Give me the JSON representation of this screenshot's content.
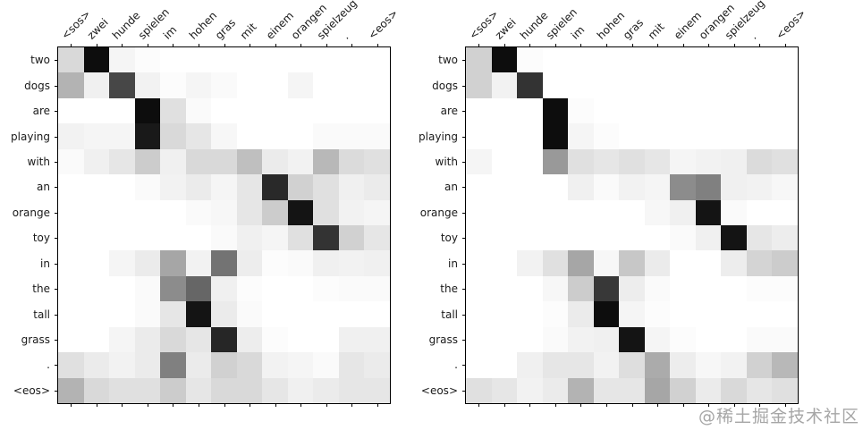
{
  "figure": {
    "background": "#ffffff",
    "axis_color": "#000000",
    "label_color": "#1a1a1a"
  },
  "watermark": {
    "text": "@稀土掘金技术社区",
    "color": "#a6a6a6"
  },
  "chart_data": {
    "type": "heatmap",
    "description": "Two side-by-side neural machine translation attention matrices (German source words on x-axis, English target words on y-axis). Grayscale: 0 = white (no attention), 1 = black (full attention).",
    "colormap": "grayscale, 0=white, 1=black",
    "grid": false,
    "x_labels": [
      "<sos>",
      "zwei",
      "hunde",
      "spielen",
      "im",
      "hohen",
      "gras",
      "mit",
      "einem",
      "orangen",
      "spielzeug",
      ".",
      "<eos>"
    ],
    "y_labels": [
      "two",
      "dogs",
      "are",
      "playing",
      "with",
      "an",
      "orange",
      "toy",
      "in",
      "the",
      "tall",
      "grass",
      ".",
      "<eos>"
    ],
    "heatmaps": [
      {
        "name": "left-attention-matrix",
        "values": [
          [
            0.15,
            0.95,
            0.04,
            0.01,
            0,
            0,
            0,
            0,
            0,
            0,
            0,
            0,
            0
          ],
          [
            0.3,
            0.06,
            0.72,
            0.05,
            0.01,
            0.04,
            0.02,
            0,
            0,
            0.04,
            0,
            0,
            0
          ],
          [
            0,
            0,
            0,
            0.95,
            0.12,
            0.02,
            0,
            0,
            0,
            0,
            0,
            0,
            0
          ],
          [
            0.05,
            0.04,
            0.04,
            0.9,
            0.15,
            0.1,
            0.03,
            0,
            0,
            0,
            0.02,
            0.02,
            0.02
          ],
          [
            0.02,
            0.06,
            0.1,
            0.2,
            0.06,
            0.15,
            0.15,
            0.25,
            0.08,
            0.05,
            0.28,
            0.14,
            0.12
          ],
          [
            0,
            0,
            0,
            0.02,
            0.05,
            0.08,
            0.04,
            0.1,
            0.84,
            0.18,
            0.12,
            0.06,
            0.08
          ],
          [
            0,
            0,
            0,
            0,
            0,
            0.02,
            0.03,
            0.1,
            0.2,
            0.92,
            0.12,
            0.05,
            0.04
          ],
          [
            0,
            0,
            0,
            0,
            0,
            0,
            0.02,
            0.06,
            0.04,
            0.12,
            0.8,
            0.18,
            0.1
          ],
          [
            0,
            0,
            0.04,
            0.08,
            0.35,
            0.05,
            0.55,
            0.07,
            0.01,
            0.02,
            0.06,
            0.05,
            0.06
          ],
          [
            0,
            0,
            0,
            0.02,
            0.45,
            0.6,
            0.06,
            0.01,
            0,
            0,
            0.01,
            0.02,
            0.02
          ],
          [
            0,
            0,
            0,
            0.02,
            0.1,
            0.92,
            0.08,
            0.02,
            0,
            0,
            0,
            0,
            0
          ],
          [
            0,
            0,
            0.04,
            0.08,
            0.15,
            0.1,
            0.85,
            0.07,
            0.01,
            0,
            0,
            0.06,
            0.06
          ],
          [
            0.12,
            0.08,
            0.05,
            0.08,
            0.5,
            0.08,
            0.18,
            0.15,
            0.05,
            0.04,
            0.02,
            0.1,
            0.08
          ],
          [
            0.3,
            0.15,
            0.12,
            0.12,
            0.2,
            0.1,
            0.15,
            0.15,
            0.1,
            0.06,
            0.08,
            0.1,
            0.1
          ]
        ]
      },
      {
        "name": "right-attention-matrix",
        "values": [
          [
            0.18,
            0.95,
            0.01,
            0,
            0,
            0,
            0,
            0,
            0,
            0,
            0,
            0,
            0
          ],
          [
            0.18,
            0.05,
            0.8,
            0,
            0,
            0,
            0,
            0,
            0,
            0,
            0,
            0,
            0
          ],
          [
            0,
            0,
            0,
            0.95,
            0.01,
            0,
            0,
            0,
            0,
            0,
            0,
            0,
            0
          ],
          [
            0,
            0,
            0,
            0.95,
            0.04,
            0.01,
            0,
            0,
            0,
            0,
            0,
            0,
            0
          ],
          [
            0.04,
            0,
            0,
            0.4,
            0.12,
            0.1,
            0.12,
            0.1,
            0.04,
            0.05,
            0.06,
            0.14,
            0.12
          ],
          [
            0,
            0,
            0,
            0,
            0.06,
            0.02,
            0.05,
            0.04,
            0.45,
            0.5,
            0.06,
            0.05,
            0.03
          ],
          [
            0,
            0,
            0,
            0,
            0,
            0,
            0,
            0.03,
            0.06,
            0.92,
            0.02,
            0,
            0
          ],
          [
            0,
            0,
            0,
            0,
            0,
            0,
            0,
            0,
            0.02,
            0.06,
            0.92,
            0.1,
            0.07
          ],
          [
            0,
            0,
            0.05,
            0.12,
            0.35,
            0.03,
            0.22,
            0.08,
            0,
            0,
            0.07,
            0.17,
            0.2
          ],
          [
            0,
            0,
            0,
            0.03,
            0.2,
            0.78,
            0.07,
            0.02,
            0,
            0,
            0,
            0.01,
            0.01
          ],
          [
            0,
            0,
            0,
            0.01,
            0.08,
            0.95,
            0.04,
            0.01,
            0,
            0,
            0,
            0,
            0
          ],
          [
            0,
            0,
            0,
            0.02,
            0.05,
            0.06,
            0.92,
            0.04,
            0.01,
            0,
            0,
            0.02,
            0.02
          ],
          [
            0,
            0,
            0.06,
            0.1,
            0.1,
            0.05,
            0.13,
            0.33,
            0.07,
            0.03,
            0.05,
            0.18,
            0.28
          ],
          [
            0.12,
            0.1,
            0.05,
            0.08,
            0.3,
            0.1,
            0.1,
            0.35,
            0.18,
            0.08,
            0.15,
            0.1,
            0.12
          ]
        ]
      }
    ]
  }
}
